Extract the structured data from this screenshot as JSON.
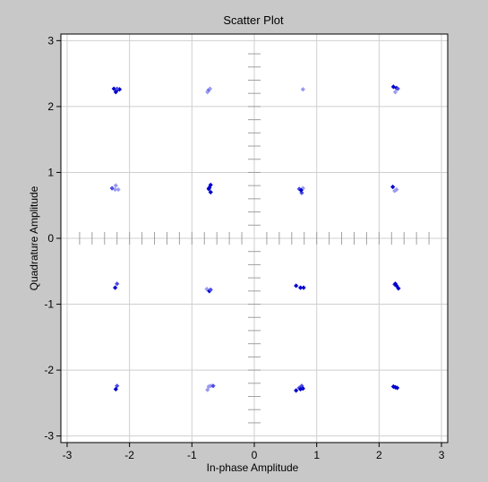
{
  "chart_data": {
    "type": "scatter",
    "title": "Scatter Plot",
    "xlabel": "In-phase Amplitude",
    "ylabel": "Quadrature Amplitude",
    "xlim": [
      -3.1,
      3.1
    ],
    "ylim": [
      -3.1,
      3.1
    ],
    "xticks": [
      -3,
      -2,
      -1,
      0,
      1,
      2,
      3
    ],
    "yticks": [
      -3,
      -2,
      -1,
      0,
      1,
      2,
      3
    ],
    "grid": true,
    "background_color": "#c8c8c8",
    "plot_color": "#ffffff",
    "grid_color": "#cfcfcf",
    "marker": "diamond",
    "colors": {
      "dark": "#0000cc",
      "mid": "#4b4be6",
      "light": "#9a9af0"
    },
    "points": [
      {
        "x": -2.25,
        "y": 2.27,
        "s": "dark"
      },
      {
        "x": -2.2,
        "y": 2.25,
        "s": "dark"
      },
      {
        "x": -2.16,
        "y": 2.26,
        "s": "dark"
      },
      {
        "x": -2.22,
        "y": 2.22,
        "s": "dark"
      },
      {
        "x": -2.2,
        "y": 2.27,
        "s": "mid"
      },
      {
        "x": -0.73,
        "y": 2.25,
        "s": "mid"
      },
      {
        "x": -0.75,
        "y": 2.22,
        "s": "light"
      },
      {
        "x": -0.71,
        "y": 2.27,
        "s": "light"
      },
      {
        "x": 0.78,
        "y": 2.26,
        "s": "light"
      },
      {
        "x": 2.23,
        "y": 2.3,
        "s": "dark"
      },
      {
        "x": 2.28,
        "y": 2.28,
        "s": "dark"
      },
      {
        "x": 2.26,
        "y": 2.22,
        "s": "light"
      },
      {
        "x": 2.3,
        "y": 2.27,
        "s": "mid"
      },
      {
        "x": -2.28,
        "y": 0.76,
        "s": "mid"
      },
      {
        "x": -2.22,
        "y": 0.8,
        "s": "light"
      },
      {
        "x": -2.18,
        "y": 0.74,
        "s": "light"
      },
      {
        "x": -2.23,
        "y": 0.74,
        "s": "light"
      },
      {
        "x": -0.7,
        "y": 0.81,
        "s": "dark"
      },
      {
        "x": -0.73,
        "y": 0.75,
        "s": "dark"
      },
      {
        "x": -0.7,
        "y": 0.7,
        "s": "dark"
      },
      {
        "x": -0.72,
        "y": 0.77,
        "s": "dark"
      },
      {
        "x": 0.72,
        "y": 0.75,
        "s": "mid"
      },
      {
        "x": 0.76,
        "y": 0.69,
        "s": "mid"
      },
      {
        "x": 0.78,
        "y": 0.76,
        "s": "light"
      },
      {
        "x": 0.75,
        "y": 0.73,
        "s": "dark"
      },
      {
        "x": 2.22,
        "y": 0.78,
        "s": "dark"
      },
      {
        "x": 2.25,
        "y": 0.72,
        "s": "light"
      },
      {
        "x": 2.28,
        "y": 0.74,
        "s": "light"
      },
      {
        "x": -2.2,
        "y": -0.69,
        "s": "mid"
      },
      {
        "x": -2.23,
        "y": -0.75,
        "s": "dark"
      },
      {
        "x": -0.76,
        "y": -0.77,
        "s": "light"
      },
      {
        "x": -0.72,
        "y": -0.8,
        "s": "dark"
      },
      {
        "x": -0.7,
        "y": -0.78,
        "s": "mid"
      },
      {
        "x": 0.67,
        "y": -0.72,
        "s": "dark"
      },
      {
        "x": 0.74,
        "y": -0.75,
        "s": "dark"
      },
      {
        "x": 0.79,
        "y": -0.75,
        "s": "dark"
      },
      {
        "x": 2.25,
        "y": -0.7,
        "s": "mid"
      },
      {
        "x": 2.28,
        "y": -0.72,
        "s": "dark"
      },
      {
        "x": 2.31,
        "y": -0.76,
        "s": "dark"
      },
      {
        "x": 2.26,
        "y": -0.69,
        "s": "dark"
      },
      {
        "x": -2.2,
        "y": -2.24,
        "s": "mid"
      },
      {
        "x": -2.22,
        "y": -2.29,
        "s": "dark"
      },
      {
        "x": -0.75,
        "y": -2.3,
        "s": "light"
      },
      {
        "x": -0.7,
        "y": -2.24,
        "s": "light"
      },
      {
        "x": -0.66,
        "y": -2.24,
        "s": "mid"
      },
      {
        "x": -0.73,
        "y": -2.25,
        "s": "light"
      },
      {
        "x": 0.67,
        "y": -2.31,
        "s": "dark"
      },
      {
        "x": 0.72,
        "y": -2.27,
        "s": "mid"
      },
      {
        "x": 0.76,
        "y": -2.24,
        "s": "mid"
      },
      {
        "x": 0.78,
        "y": -2.28,
        "s": "dark"
      },
      {
        "x": 0.74,
        "y": -2.29,
        "s": "dark"
      },
      {
        "x": 2.23,
        "y": -2.25,
        "s": "dark"
      },
      {
        "x": 2.26,
        "y": -2.26,
        "s": "dark"
      },
      {
        "x": 2.29,
        "y": -2.27,
        "s": "dark"
      }
    ]
  }
}
